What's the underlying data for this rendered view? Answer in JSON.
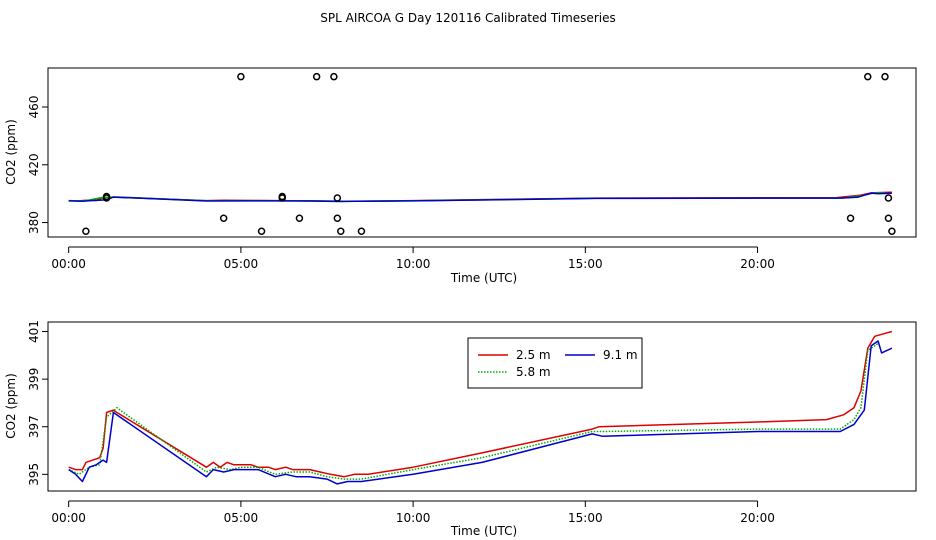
{
  "title": "SPL AIRCOA G  Day 120116  Calibrated Timeseries",
  "chart_data": [
    {
      "type": "line",
      "xlabel": "Time (UTC)",
      "ylabel": "CO2 (ppm)",
      "xlim": [
        -0.6,
        24.6
      ],
      "ylim": [
        370,
        487
      ],
      "x_ticks": [
        0,
        5,
        10,
        15,
        20
      ],
      "x_tick_labels": [
        "00:00",
        "05:00",
        "10:00",
        "15:00",
        "20:00"
      ],
      "y_ticks": [
        380,
        420,
        460
      ],
      "y_tick_labels": [
        "380",
        "420",
        "460"
      ],
      "series": [
        {
          "name": "2.5 m",
          "color": "#dd0000",
          "x": [
            0,
            0.3,
            0.5,
            0.8,
            1.0,
            1.3,
            4.0,
            4.5,
            5.5,
            7.0,
            8.0,
            8.5,
            10.0,
            15.3,
            20.0,
            22.3,
            23.0,
            23.3,
            23.6,
            23.9
          ],
          "y": [
            395.2,
            395.0,
            395.5,
            395.3,
            397.2,
            397.6,
            395.2,
            395.5,
            395.3,
            395.0,
            394.8,
            394.8,
            395.2,
            396.9,
            397.2,
            397.3,
            399.0,
            400.5,
            400.8,
            401.0
          ]
        },
        {
          "name": "5.8 m",
          "color": "#00aa00",
          "x": [
            0,
            0.5,
            1.0,
            1.4,
            4.0,
            5.5,
            7.0,
            8.0,
            10.0,
            15.3,
            20.0,
            22.5,
            23.0,
            23.4,
            23.7
          ],
          "y": [
            395.1,
            395.2,
            397.4,
            397.7,
            395.1,
            395.2,
            395.0,
            394.7,
            395.1,
            396.8,
            396.9,
            397.0,
            398.5,
            400.5,
            400.6
          ]
        },
        {
          "name": "9.1 m",
          "color": "#0000cc",
          "x": [
            0,
            0.4,
            0.7,
            1.1,
            1.3,
            4.0,
            5.5,
            7.0,
            7.9,
            8.3,
            10.0,
            15.3,
            20.0,
            22.4,
            22.9,
            23.3,
            23.5,
            23.9
          ],
          "y": [
            395.0,
            394.7,
            395.3,
            395.7,
            397.6,
            394.9,
            395.0,
            394.9,
            394.6,
            394.7,
            395.0,
            396.7,
            396.9,
            396.9,
            397.5,
            400.4,
            400.0,
            400.3
          ]
        }
      ],
      "points": {
        "x": [
          0.5,
          1.1,
          1.1,
          4.5,
          5.0,
          5.6,
          6.2,
          6.2,
          6.7,
          7.2,
          7.7,
          7.8,
          7.8,
          7.9,
          8.5,
          22.7,
          23.2,
          23.7,
          23.8,
          23.8,
          23.9
        ],
        "y": [
          374,
          397,
          398,
          383,
          481,
          374,
          397,
          398,
          383,
          481,
          481,
          383,
          397,
          374,
          374,
          383,
          481,
          481,
          397,
          383,
          374
        ]
      }
    },
    {
      "type": "line",
      "xlabel": "Time (UTC)",
      "ylabel": "CO2 (ppm)",
      "xlim": [
        -0.6,
        24.6
      ],
      "ylim": [
        394.3,
        401.4
      ],
      "x_ticks": [
        0,
        5,
        10,
        15,
        20
      ],
      "x_tick_labels": [
        "00:00",
        "05:00",
        "10:00",
        "15:00",
        "20:00"
      ],
      "y_ticks": [
        395,
        397,
        399,
        401
      ],
      "y_tick_labels": [
        "395",
        "397",
        "399",
        "401"
      ],
      "legend": {
        "position": "top-right",
        "entries": [
          "2.5 m",
          "9.1 m",
          "5.8 m"
        ]
      },
      "series": [
        {
          "name": "2.5 m",
          "color": "#dd0000",
          "x": [
            0,
            0.2,
            0.4,
            0.5,
            0.7,
            0.9,
            1.0,
            1.1,
            1.3,
            1.4,
            4.0,
            4.2,
            4.4,
            4.6,
            4.8,
            5.0,
            5.3,
            5.5,
            5.8,
            6.0,
            6.3,
            6.5,
            6.8,
            7.0,
            7.3,
            7.6,
            8.0,
            8.3,
            8.7,
            10.0,
            12.0,
            15.2,
            15.4,
            20.0,
            22.0,
            22.5,
            22.8,
            23.0,
            23.2,
            23.4,
            23.9
          ],
          "y": [
            395.3,
            395.2,
            395.2,
            395.5,
            395.6,
            395.7,
            396.1,
            397.6,
            397.7,
            397.6,
            395.3,
            395.5,
            395.3,
            395.5,
            395.4,
            395.4,
            395.4,
            395.3,
            395.3,
            395.2,
            395.3,
            395.2,
            395.2,
            395.2,
            395.1,
            395.0,
            394.9,
            395.0,
            395.0,
            395.3,
            395.9,
            396.9,
            397.0,
            397.2,
            397.3,
            397.5,
            397.8,
            398.5,
            400.3,
            400.8,
            401.0
          ]
        },
        {
          "name": "5.8 m",
          "color": "#00aa00",
          "x": [
            0,
            0.3,
            0.6,
            0.9,
            1.1,
            1.4,
            4.0,
            4.3,
            4.7,
            5.0,
            5.5,
            6.0,
            6.5,
            7.0,
            7.5,
            8.0,
            8.5,
            10.0,
            12.0,
            15.2,
            15.5,
            20.0,
            22.4,
            22.8,
            23.0,
            23.2,
            23.5
          ],
          "y": [
            395.2,
            395.0,
            395.3,
            395.4,
            397.4,
            397.8,
            395.1,
            395.3,
            395.2,
            395.3,
            395.3,
            395.0,
            395.1,
            395.1,
            394.9,
            394.8,
            394.8,
            395.2,
            395.7,
            396.8,
            396.8,
            396.9,
            396.9,
            397.3,
            397.8,
            400.2,
            400.5
          ]
        },
        {
          "name": "9.1 m",
          "color": "#0000cc",
          "x": [
            0,
            0.2,
            0.4,
            0.6,
            0.8,
            1.0,
            1.1,
            1.3,
            4.0,
            4.2,
            4.5,
            4.8,
            5.0,
            5.5,
            6.0,
            6.3,
            6.6,
            7.0,
            7.5,
            7.8,
            8.1,
            8.5,
            10.0,
            12.0,
            15.2,
            15.5,
            20.0,
            22.4,
            22.8,
            23.1,
            23.3,
            23.5,
            23.6,
            23.9
          ],
          "y": [
            395.2,
            395.0,
            394.7,
            395.3,
            395.4,
            395.6,
            395.5,
            397.6,
            394.9,
            395.2,
            395.1,
            395.2,
            395.2,
            395.2,
            394.9,
            395.0,
            394.9,
            394.9,
            394.8,
            394.6,
            394.7,
            394.7,
            395.0,
            395.5,
            396.7,
            396.6,
            396.8,
            396.8,
            397.1,
            397.7,
            400.4,
            400.6,
            400.1,
            400.3
          ]
        }
      ]
    }
  ]
}
